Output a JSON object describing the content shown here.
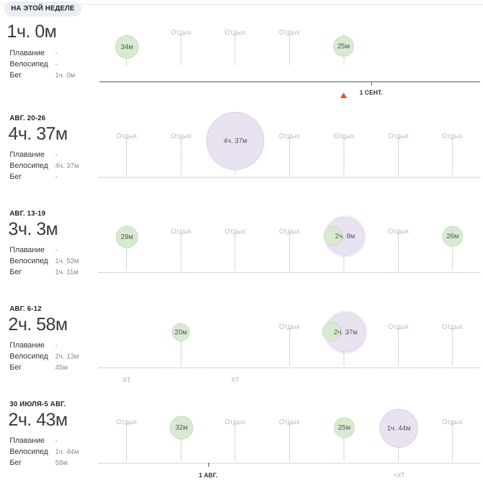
{
  "colors": {
    "run": "#d9ead3",
    "bike": "#e8e2f1",
    "today_marker": "#e05a1a"
  },
  "stat_labels": {
    "swim": "Плавание",
    "bike": "Велосипед",
    "run": "Бег"
  },
  "weeks": [
    {
      "label": "НА ЭТОЙ НЕДЕЛЕ",
      "total": "1ч. 0м",
      "stats": {
        "swim": "-",
        "bike": "-",
        "run": "1ч. 0м"
      },
      "days": [
        {
          "rest": "",
          "run": "34м"
        },
        {
          "rest": "Отдых"
        },
        {
          "rest": "Отдых"
        },
        {
          "rest": "Отдых"
        },
        {
          "rest": "",
          "run": "25м"
        },
        {
          "rest": ""
        },
        {
          "rest": ""
        }
      ],
      "date_mark": "1 СЕНТ."
    },
    {
      "label": "АВГ. 20-26",
      "total": "4ч. 37м",
      "stats": {
        "swim": "-",
        "bike": "4ч. 37м",
        "run": "-"
      },
      "days": [
        {
          "rest": "Отдых"
        },
        {
          "rest": "Отдых"
        },
        {
          "rest": "",
          "bike": "4ч. 37м"
        },
        {
          "rest": "Отдых"
        },
        {
          "rest": "Отдых"
        },
        {
          "rest": "Отдых"
        },
        {
          "rest": "Отдых"
        }
      ]
    },
    {
      "label": "АВГ. 13-19",
      "total": "3ч. 3м",
      "stats": {
        "swim": "-",
        "bike": "1ч. 52м",
        "run": "1ч. 11м"
      },
      "days": [
        {
          "rest": "",
          "run": "29м"
        },
        {
          "rest": "Отдых"
        },
        {
          "rest": "Отдых"
        },
        {
          "rest": "Отдых"
        },
        {
          "rest": "",
          "bike": "2ч. 8м",
          "mini_run": true
        },
        {
          "rest": "Отдых"
        },
        {
          "rest": "",
          "run": "26м"
        }
      ]
    },
    {
      "label": "АВГ. 6-12",
      "total": "2ч. 58м",
      "stats": {
        "swim": "-",
        "bike": "2ч. 13м",
        "run": "45м"
      },
      "days": [
        {
          "rest": ""
        },
        {
          "rest": "",
          "run": "20м"
        },
        {
          "rest": ""
        },
        {
          "rest": "Отдых"
        },
        {
          "rest": "",
          "bike": "2ч. 37м",
          "mini_run": true
        },
        {
          "rest": "Отдых"
        },
        {
          "rest": "Отдых"
        }
      ],
      "sub_labels": [
        "XT",
        "XT"
      ]
    },
    {
      "label": "30 ИЮЛЯ-5 АВГ.",
      "total": "2ч. 43м",
      "stats": {
        "swim": "-",
        "bike": "1ч. 44м",
        "run": "58м"
      },
      "days": [
        {
          "rest": "Отдых"
        },
        {
          "rest": "",
          "run": "32м"
        },
        {
          "rest": "Отдых"
        },
        {
          "rest": "Отдых"
        },
        {
          "rest": "",
          "run": "25м"
        },
        {
          "rest": "",
          "bike": "1ч. 44м"
        },
        {
          "rest": "Отдых"
        }
      ],
      "date_mark": "1 АВГ.",
      "sub_labels": [
        "+XT"
      ]
    }
  ]
}
